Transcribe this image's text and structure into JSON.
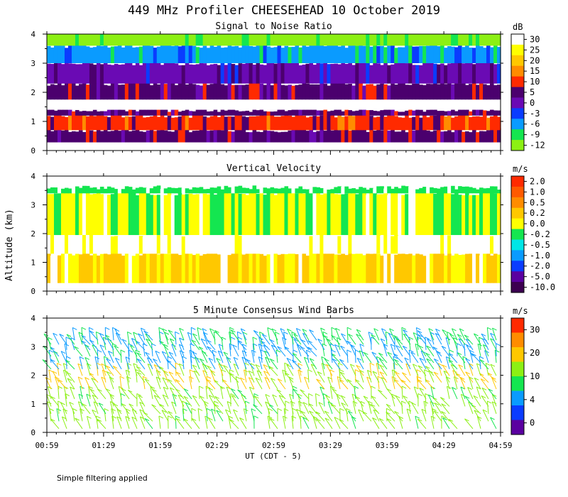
{
  "title": "449 MHz Profiler CHEESEHEAD 10 October 2019",
  "footnote": "Simple filtering applied",
  "y_axis_label": "Altitude (km)",
  "x_axis_label": "UT  (CDT - 5)",
  "colors": {
    "white": "#ffffff"
  },
  "chart_data": [
    {
      "type": "heatmap",
      "title": "Signal to Noise Ratio",
      "units": "dB",
      "xlabel": "UT  (CDT - 5)",
      "ylabel": "Altitude (km)",
      "ylim": [
        0,
        4
      ],
      "yticks": [
        0,
        1,
        2,
        3,
        4
      ],
      "colorbar": {
        "labels": [
          "30",
          "25",
          "20",
          "15",
          "10",
          "5",
          "0",
          "-3",
          "-6",
          "-9",
          "-12"
        ],
        "colors": [
          "#ffffff",
          "#ffff00",
          "#ffc800",
          "#ff8c00",
          "#ff2a00",
          "#4b006e",
          "#6a0ab4",
          "#0a3cff",
          "#0a9bff",
          "#14e650",
          "#8cf014"
        ]
      },
      "layers": [
        {
          "alt_range": [
            0.28,
            0.7
          ],
          "value": "5",
          "note": "purple band near surface"
        },
        {
          "alt_range": [
            0.7,
            1.2
          ],
          "value": "10",
          "note": "red band"
        },
        {
          "alt_range": [
            1.2,
            1.4
          ],
          "value": "5"
        },
        {
          "alt_range": [
            1.4,
            1.75
          ],
          "value": "30",
          "note": "white high-SNR layer"
        },
        {
          "alt_range": [
            1.75,
            2.3
          ],
          "value": "5"
        },
        {
          "alt_range": [
            2.3,
            3.0
          ],
          "value": "0"
        },
        {
          "alt_range": [
            3.0,
            3.6
          ],
          "value": "-6"
        },
        {
          "alt_range": [
            3.6,
            4.0
          ],
          "value": "-12"
        }
      ]
    },
    {
      "type": "heatmap",
      "title": "Vertical Velocity",
      "units": "m/s",
      "xlabel": "UT  (CDT - 5)",
      "ylabel": "Altitude (km)",
      "ylim": [
        0,
        4
      ],
      "yticks": [
        0,
        1,
        2,
        3,
        4
      ],
      "colorbar": {
        "labels": [
          "2.0",
          "1.0",
          "0.5",
          "0.2",
          "0.0",
          "-0.2",
          "-0.5",
          "-1.0",
          "-2.0",
          "-5.0",
          "-10.0"
        ],
        "colors": [
          "#ff2a00",
          "#ff5a00",
          "#ff8c00",
          "#ffc800",
          "#ffff00",
          "#14e650",
          "#00e6e6",
          "#0a9bff",
          "#0a3cff",
          "#5a00a0",
          "#3c0050"
        ]
      },
      "layers": [
        {
          "alt_range": [
            0.28,
            1.3
          ],
          "value": "0.2",
          "note": "orange/yellow"
        },
        {
          "alt_range": [
            1.3,
            1.95
          ],
          "value": "blank",
          "note": "white gap"
        },
        {
          "alt_range": [
            1.95,
            3.4
          ],
          "value": "0.0",
          "note": "yellow/green mix"
        },
        {
          "alt_range": [
            3.4,
            3.6
          ],
          "value": "-0.2"
        }
      ]
    },
    {
      "type": "wind-barbs",
      "title": "5 Minute Consensus Wind Barbs",
      "units": "m/s",
      "xlabel": "UT  (CDT - 5)",
      "ylabel": "Altitude (km)",
      "ylim": [
        0,
        4
      ],
      "yticks": [
        0,
        1,
        2,
        3,
        4
      ],
      "colorbar": {
        "labels": [
          "30",
          "20",
          "10",
          "4",
          "0"
        ],
        "label_positions_fraction": [
          0.1,
          0.3,
          0.5,
          0.7,
          0.9
        ],
        "colors": [
          "#ff2a00",
          "#ff8c00",
          "#ffc800",
          "#8cf014",
          "#14e650",
          "#0a9bff",
          "#0a3cff",
          "#5a00a0"
        ]
      },
      "layers": [
        {
          "alt_range": [
            0.0,
            1.3
          ],
          "speed_mps": 15
        },
        {
          "alt_range": [
            1.4,
            2.1
          ],
          "speed_mps": 20
        },
        {
          "alt_range": [
            2.1,
            3.0
          ],
          "speed_mps": 8
        },
        {
          "alt_range": [
            3.0,
            3.3
          ],
          "speed_mps": 10
        }
      ]
    }
  ],
  "x_ticks": [
    "00:59",
    "01:29",
    "01:59",
    "02:29",
    "02:59",
    "03:29",
    "03:59",
    "04:29",
    "04:59"
  ]
}
